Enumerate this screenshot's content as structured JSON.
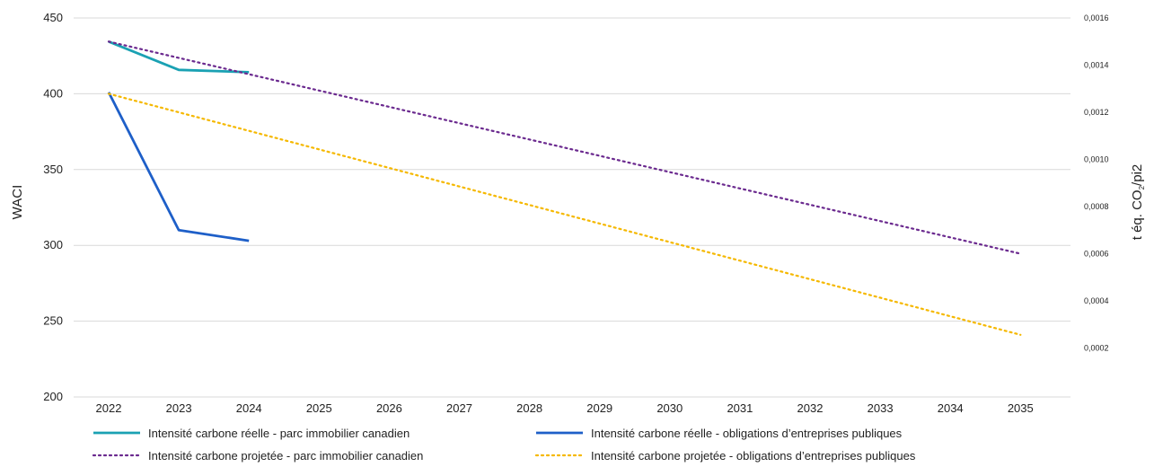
{
  "chart_data": {
    "type": "line",
    "x": [
      "2022",
      "2023",
      "2024",
      "2025",
      "2026",
      "2027",
      "2028",
      "2029",
      "2030",
      "2031",
      "2032",
      "2033",
      "2034",
      "2035"
    ],
    "y_left": {
      "label": "WACI",
      "range": [
        200,
        450
      ],
      "ticks": [
        "200",
        "250",
        "300",
        "350",
        "400",
        "450"
      ]
    },
    "y_right": {
      "label_prefix": "t éq. CO",
      "label_sub": "2",
      "label_suffix": "/pi2",
      "range": [
        0,
        0.0016
      ],
      "ticks": [
        "0,0002",
        "0,0004",
        "0,0006",
        "0,0008",
        "0,0010",
        "0,0012",
        "0,0014",
        "0,0016"
      ]
    },
    "grid": true,
    "legend_position": "bottom",
    "series": [
      {
        "name": "Intensité carbone réelle - parc immobilier canadien",
        "axis": "right",
        "style": "solid",
        "color": "#1aa1b3",
        "x": [
          "2022",
          "2023",
          "2024"
        ],
        "values": [
          0.0015,
          0.00138,
          0.00137
        ]
      },
      {
        "name": "Intensité carbone réelle - obligations d’entreprises publiques",
        "axis": "left",
        "style": "solid",
        "color": "#1e5fc8",
        "x": [
          "2022",
          "2023",
          "2024"
        ],
        "values": [
          401,
          310,
          303
        ]
      },
      {
        "name": "Intensité carbone projetée - parc immobilier canadien",
        "axis": "right",
        "style": "dotted",
        "color": "#6b2a8f",
        "x": [
          "2022",
          "2035"
        ],
        "values": [
          0.0015,
          0.0006
        ]
      },
      {
        "name": "Intensité carbone projetée - obligations d’entreprises publiques",
        "axis": "left",
        "style": "dotted",
        "color": "#f5b800",
        "x": [
          "2022",
          "2035"
        ],
        "values": [
          400,
          241
        ]
      }
    ]
  }
}
